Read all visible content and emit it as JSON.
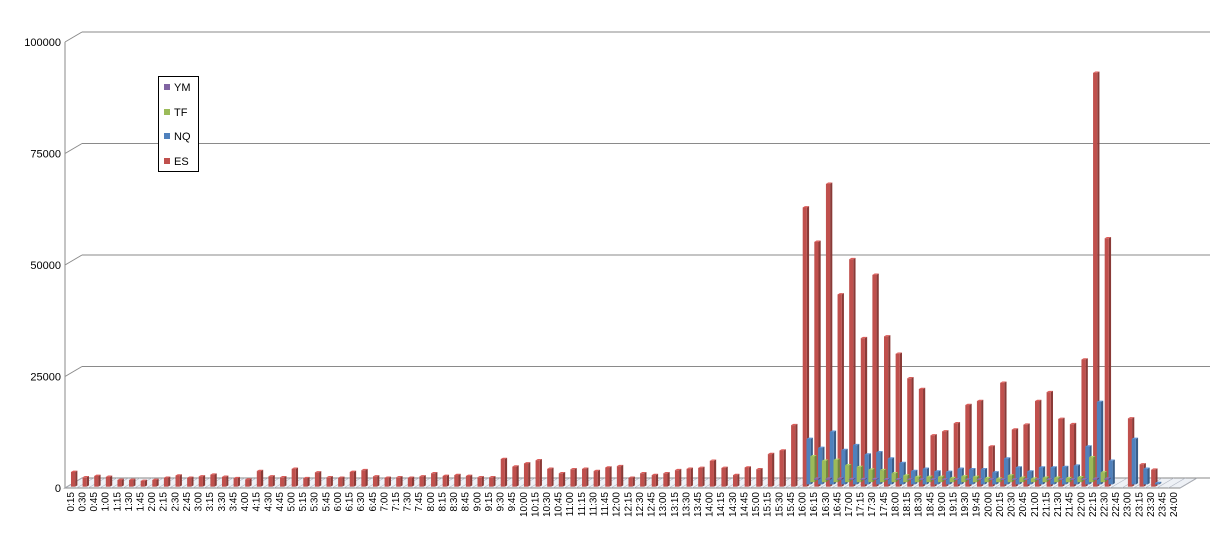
{
  "chart_data": {
    "type": "bar",
    "title": "",
    "xlabel": "",
    "ylabel": "",
    "ylim": [
      0,
      100000
    ],
    "yticks": [
      "0",
      "25000",
      "50000",
      "75000",
      "100000"
    ],
    "grid": true,
    "legend_position": "top-left",
    "categories": [
      "0:15",
      "0:30",
      "0:45",
      "1:00",
      "1:15",
      "1:30",
      "1:45",
      "2:00",
      "2:15",
      "2:30",
      "2:45",
      "3:00",
      "3:15",
      "3:30",
      "3:45",
      "4:00",
      "4:15",
      "4:30",
      "4:45",
      "5:00",
      "5:15",
      "5:30",
      "5:45",
      "6:00",
      "6:15",
      "6:30",
      "6:45",
      "7:00",
      "7:15",
      "7:30",
      "7:45",
      "8:00",
      "8:15",
      "8:30",
      "8:45",
      "9:00",
      "9:15",
      "9:30",
      "9:45",
      "10:00",
      "10:15",
      "10:30",
      "10:45",
      "11:00",
      "11:15",
      "11:30",
      "11:45",
      "12:00",
      "12:15",
      "12:30",
      "12:45",
      "13:00",
      "13:15",
      "13:30",
      "13:45",
      "14:00",
      "14:15",
      "14:30",
      "14:45",
      "15:00",
      "15:15",
      "15:30",
      "15:45",
      "16:00",
      "16:15",
      "16:30",
      "16:45",
      "17:00",
      "17:15",
      "17:30",
      "17:45",
      "18:00",
      "18:15",
      "18:30",
      "18:45",
      "19:00",
      "19:15",
      "19:30",
      "19:45",
      "20:00",
      "20:15",
      "20:30",
      "20:45",
      "21:00",
      "21:15",
      "21:30",
      "21:45",
      "22:00",
      "22:15",
      "22:30",
      "22:45",
      "23:00",
      "23:15",
      "23:30",
      "23:45",
      "24:00"
    ],
    "series": [
      {
        "name": "YM",
        "color": "#8064a2",
        "values": [
          0,
          0,
          0,
          0,
          0,
          0,
          0,
          0,
          0,
          0,
          0,
          0,
          0,
          0,
          0,
          0,
          0,
          0,
          0,
          0,
          0,
          0,
          0,
          0,
          0,
          0,
          0,
          0,
          0,
          0,
          0,
          0,
          0,
          0,
          0,
          0,
          0,
          0,
          0,
          0,
          0,
          0,
          0,
          0,
          0,
          0,
          0,
          0,
          0,
          0,
          0,
          0,
          0,
          0,
          0,
          0,
          0,
          0,
          0,
          0,
          0,
          0,
          0,
          300,
          300,
          300,
          200,
          200,
          200,
          150,
          150,
          100,
          100,
          100,
          100,
          100,
          100,
          100,
          100,
          100,
          100,
          100,
          100,
          100,
          100,
          100,
          100,
          300,
          300,
          0,
          0,
          0,
          0,
          0,
          0,
          0
        ]
      },
      {
        "name": "TF",
        "color": "#9bbb59",
        "values": [
          0,
          0,
          0,
          0,
          0,
          0,
          0,
          0,
          0,
          0,
          0,
          0,
          0,
          0,
          0,
          0,
          0,
          0,
          0,
          0,
          0,
          0,
          0,
          0,
          0,
          0,
          0,
          0,
          0,
          0,
          0,
          0,
          0,
          0,
          0,
          0,
          0,
          0,
          0,
          0,
          0,
          0,
          0,
          0,
          0,
          0,
          0,
          0,
          0,
          0,
          0,
          0,
          0,
          0,
          0,
          0,
          0,
          0,
          0,
          0,
          0,
          0,
          0,
          5800,
          4800,
          5000,
          3800,
          3400,
          2800,
          2700,
          2000,
          1500,
          1200,
          1200,
          1200,
          900,
          1300,
          1200,
          900,
          800,
          1500,
          1000,
          800,
          1000,
          1000,
          900,
          1100,
          5600,
          2200,
          0,
          0,
          0,
          0,
          0,
          0,
          0
        ]
      },
      {
        "name": "NQ",
        "color": "#4f81bd",
        "values": [
          0,
          0,
          0,
          0,
          0,
          0,
          0,
          0,
          0,
          0,
          0,
          0,
          0,
          0,
          0,
          0,
          0,
          0,
          0,
          0,
          0,
          0,
          0,
          0,
          0,
          0,
          0,
          0,
          0,
          0,
          0,
          0,
          0,
          0,
          0,
          0,
          0,
          0,
          0,
          0,
          0,
          0,
          0,
          0,
          0,
          0,
          0,
          0,
          0,
          0,
          0,
          0,
          0,
          0,
          0,
          0,
          0,
          0,
          0,
          0,
          0,
          0,
          0,
          10200,
          8200,
          11800,
          7700,
          8800,
          6700,
          7200,
          5800,
          4800,
          3000,
          3500,
          2900,
          2800,
          3500,
          3400,
          3400,
          2700,
          5800,
          3800,
          2900,
          3800,
          3800,
          3900,
          4200,
          8500,
          18500,
          5300,
          0,
          10200,
          3500,
          300,
          0,
          0
        ]
      },
      {
        "name": "ES",
        "color": "#c0504d",
        "values": [
          3300,
          2100,
          2400,
          2200,
          1500,
          1500,
          1300,
          1500,
          2000,
          2500,
          2000,
          2300,
          2700,
          2200,
          1900,
          1600,
          3500,
          2300,
          2100,
          4000,
          1900,
          3200,
          2100,
          2000,
          3300,
          3700,
          2300,
          2000,
          2100,
          2000,
          2300,
          3000,
          2400,
          2600,
          2400,
          2100,
          2100,
          6200,
          4500,
          5200,
          5900,
          4000,
          3000,
          3900,
          4000,
          3500,
          4300,
          4600,
          2000,
          3000,
          2600,
          3000,
          3700,
          4000,
          4200,
          5800,
          4200,
          2600,
          4300,
          3900,
          7300,
          8100,
          13800,
          62600,
          54900,
          67900,
          43100,
          51000,
          33300,
          47500,
          33700,
          29800,
          24300,
          21900,
          11500,
          12400,
          14200,
          18300,
          19200,
          9000,
          23300,
          12800,
          13900,
          19200,
          21200,
          15200,
          14000,
          28500,
          92800,
          55700,
          0,
          15300,
          5000,
          3800,
          0,
          0
        ]
      }
    ]
  }
}
